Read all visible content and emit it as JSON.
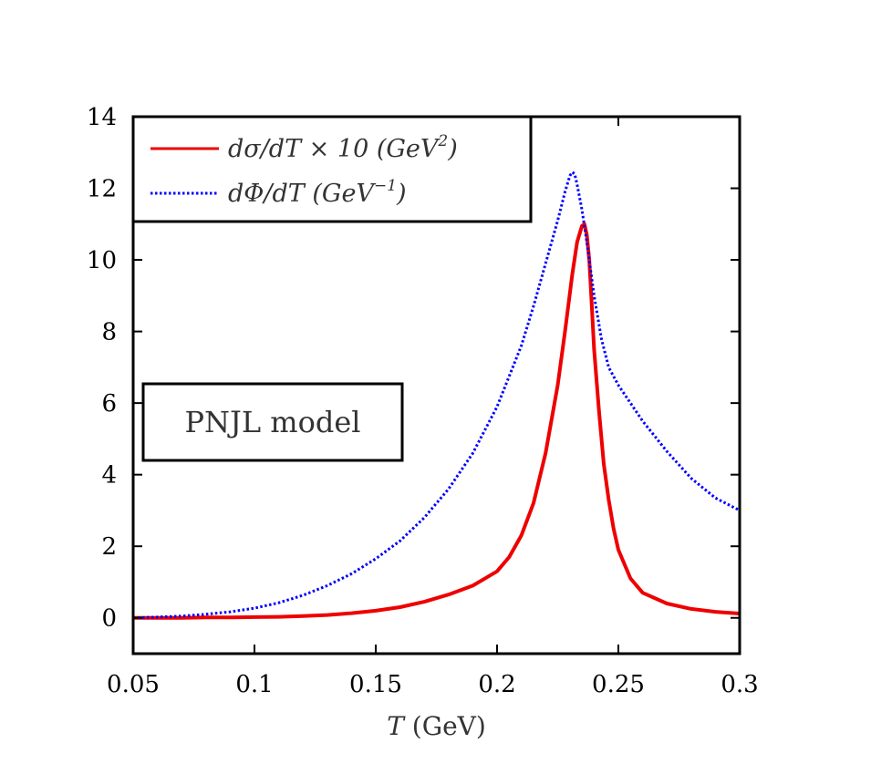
{
  "chart_data": {
    "type": "line",
    "xlabel": {
      "var": "T",
      "unit": " (GeV)"
    },
    "ylabel": "",
    "xlim": [
      0.05,
      0.3
    ],
    "ylim": [
      -1,
      14
    ],
    "xticks": [
      {
        "value": 0.05,
        "label": "0.05"
      },
      {
        "value": 0.1,
        "label": "0.1"
      },
      {
        "value": 0.15,
        "label": "0.15"
      },
      {
        "value": 0.2,
        "label": "0.2"
      },
      {
        "value": 0.25,
        "label": "0.25"
      },
      {
        "value": 0.3,
        "label": "0.3"
      }
    ],
    "yticks": [
      {
        "value": 0,
        "label": "0"
      },
      {
        "value": 2,
        "label": "2"
      },
      {
        "value": 4,
        "label": "4"
      },
      {
        "value": 6,
        "label": "6"
      },
      {
        "value": 8,
        "label": "8"
      },
      {
        "value": 10,
        "label": "10"
      },
      {
        "value": 12,
        "label": "12"
      },
      {
        "value": 14,
        "label": "14"
      }
    ],
    "grid": false,
    "legend_position": "top-left",
    "annotation": "PNJL model",
    "series": [
      {
        "id": "dsigma",
        "legend": {
          "main": "dσ/dT × 10 (GeV",
          "sup": "2",
          "tail": ")"
        },
        "color": "#ee0000",
        "style": "solid",
        "x": [
          0.05,
          0.06,
          0.07,
          0.08,
          0.09,
          0.1,
          0.11,
          0.12,
          0.13,
          0.14,
          0.15,
          0.16,
          0.17,
          0.18,
          0.19,
          0.2,
          0.205,
          0.21,
          0.215,
          0.22,
          0.225,
          0.228,
          0.231,
          0.233,
          0.235,
          0.236,
          0.237,
          0.238,
          0.239,
          0.24,
          0.242,
          0.244,
          0.246,
          0.248,
          0.25,
          0.255,
          0.26,
          0.27,
          0.28,
          0.29,
          0.3
        ],
        "y": [
          0.0,
          0.0,
          0.0,
          0.01,
          0.01,
          0.02,
          0.03,
          0.05,
          0.08,
          0.13,
          0.2,
          0.3,
          0.45,
          0.65,
          0.9,
          1.3,
          1.7,
          2.3,
          3.2,
          4.6,
          6.5,
          8.0,
          9.6,
          10.5,
          10.95,
          11.0,
          10.7,
          10.0,
          8.8,
          7.5,
          5.8,
          4.3,
          3.3,
          2.5,
          1.9,
          1.1,
          0.7,
          0.4,
          0.25,
          0.17,
          0.12
        ]
      },
      {
        "id": "dphi",
        "legend": {
          "main": "dΦ/dT (GeV",
          "sup": "−1",
          "tail": ")"
        },
        "color": "#0000ff",
        "style": "dotted",
        "x": [
          0.05,
          0.06,
          0.07,
          0.08,
          0.09,
          0.1,
          0.11,
          0.12,
          0.13,
          0.14,
          0.15,
          0.16,
          0.17,
          0.18,
          0.19,
          0.2,
          0.21,
          0.215,
          0.22,
          0.225,
          0.228,
          0.23,
          0.231,
          0.232,
          0.233,
          0.235,
          0.237,
          0.24,
          0.243,
          0.246,
          0.25,
          0.26,
          0.27,
          0.28,
          0.29,
          0.3
        ],
        "y": [
          0.0,
          0.02,
          0.05,
          0.1,
          0.17,
          0.27,
          0.42,
          0.63,
          0.9,
          1.23,
          1.65,
          2.15,
          2.8,
          3.6,
          4.6,
          5.9,
          7.6,
          8.7,
          9.9,
          11.1,
          11.9,
          12.35,
          12.45,
          12.4,
          12.1,
          11.4,
          10.5,
          9.0,
          7.8,
          7.0,
          6.5,
          5.5,
          4.65,
          3.9,
          3.35,
          3.0
        ]
      }
    ]
  }
}
